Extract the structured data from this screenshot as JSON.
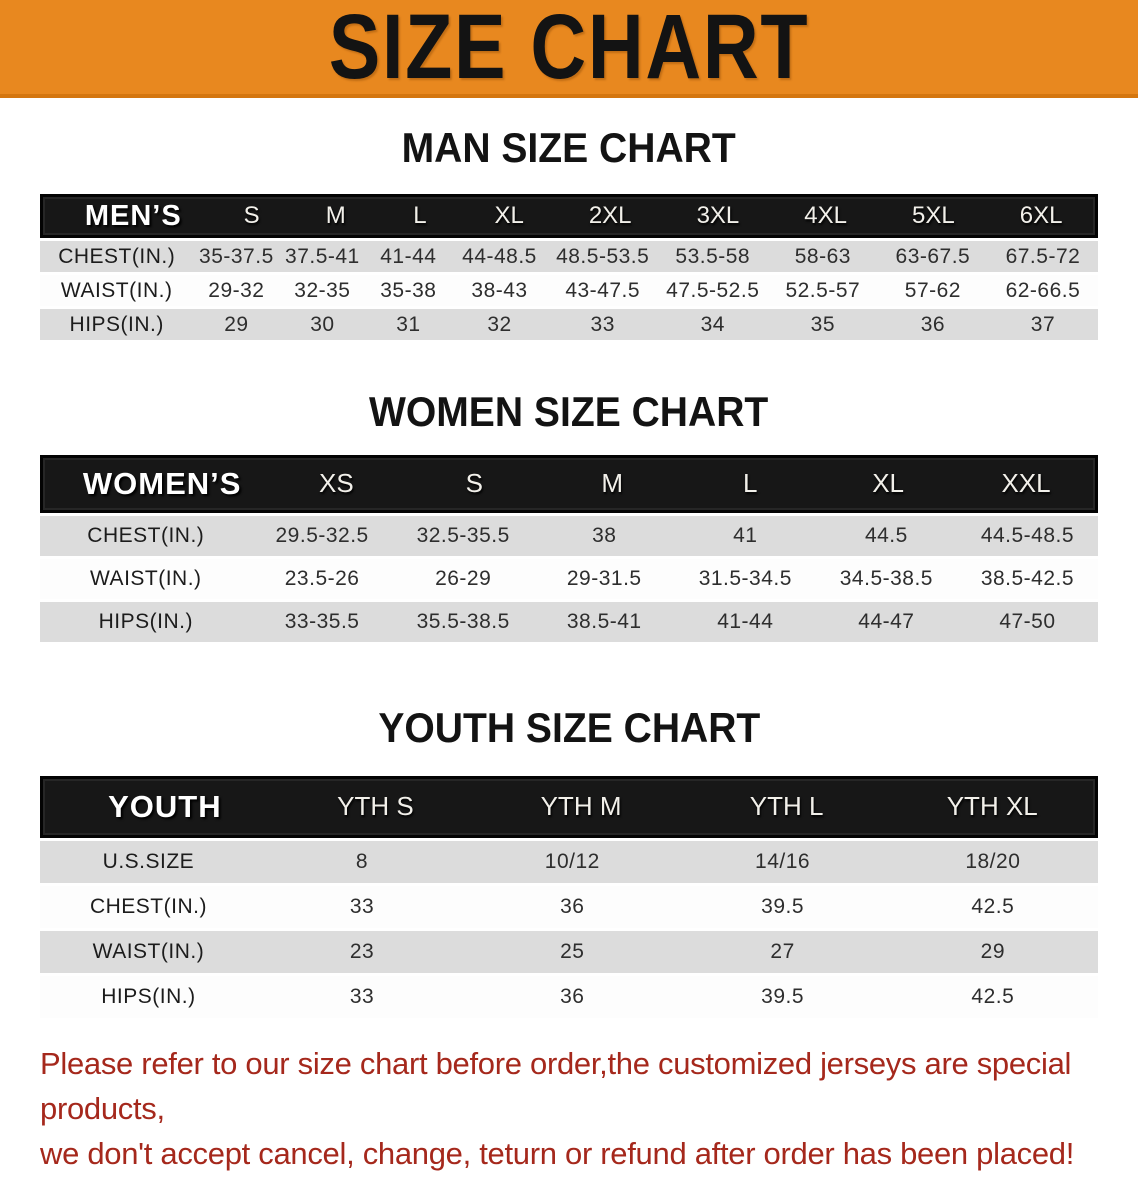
{
  "banner": {
    "title": "SIZE CHART",
    "bg_color": "#E8881F",
    "text_color": "#131313"
  },
  "sections": [
    {
      "title": "MAN SIZE CHART",
      "table": {
        "header_label": "MEN’S",
        "columns": [
          "S",
          "M",
          "L",
          "XL",
          "2XL",
          "3XL",
          "4XL",
          "5XL",
          "6XL"
        ],
        "rows": [
          {
            "label": "CHEST(IN.)",
            "values": [
              "35-37.5",
              "37.5-41",
              "41-44",
              "44-48.5",
              "48.5-53.5",
              "53.5-58",
              "58-63",
              "63-67.5",
              "67.5-72"
            ]
          },
          {
            "label": "WAIST(IN.)",
            "values": [
              "29-32",
              "32-35",
              "35-38",
              "38-43",
              "43-47.5",
              "47.5-52.5",
              "52.5-57",
              "57-62",
              "62-66.5"
            ]
          },
          {
            "label": "HIPS(IN.)",
            "values": [
              "29",
              "30",
              "31",
              "32",
              "33",
              "34",
              "35",
              "36",
              "37"
            ]
          }
        ]
      }
    },
    {
      "title": "WOMEN SIZE CHART",
      "table": {
        "header_label": "WOMEN’S",
        "columns": [
          "XS",
          "S",
          "M",
          "L",
          "XL",
          "XXL"
        ],
        "rows": [
          {
            "label": "CHEST(IN.)",
            "values": [
              "29.5-32.5",
              "32.5-35.5",
              "38",
              "41",
              "44.5",
              "44.5-48.5"
            ]
          },
          {
            "label": "WAIST(IN.)",
            "values": [
              "23.5-26",
              "26-29",
              "29-31.5",
              "31.5-34.5",
              "34.5-38.5",
              "38.5-42.5"
            ]
          },
          {
            "label": "HIPS(IN.)",
            "values": [
              "33-35.5",
              "35.5-38.5",
              "38.5-41",
              "41-44",
              "44-47",
              "47-50"
            ]
          }
        ]
      }
    },
    {
      "title": "YOUTH SIZE CHART",
      "table": {
        "header_label": "YOUTH",
        "columns": [
          "YTH S",
          "YTH M",
          "YTH L",
          "YTH XL"
        ],
        "rows": [
          {
            "label": "U.S.SIZE",
            "values": [
              "8",
              "10/12",
              "14/16",
              "18/20"
            ]
          },
          {
            "label": "CHEST(IN.)",
            "values": [
              "33",
              "36",
              "39.5",
              "42.5"
            ]
          },
          {
            "label": "WAIST(IN.)",
            "values": [
              "23",
              "25",
              "27",
              "29"
            ]
          },
          {
            "label": "HIPS(IN.)",
            "values": [
              "33",
              "36",
              "39.5",
              "42.5"
            ]
          }
        ]
      }
    }
  ],
  "disclaimer": {
    "line1": "Please refer to our size chart before order,the customized jerseys are special products,",
    "line2": "we don't accept cancel, change, teturn or refund after order has been placed!",
    "color": "#A5281C"
  }
}
